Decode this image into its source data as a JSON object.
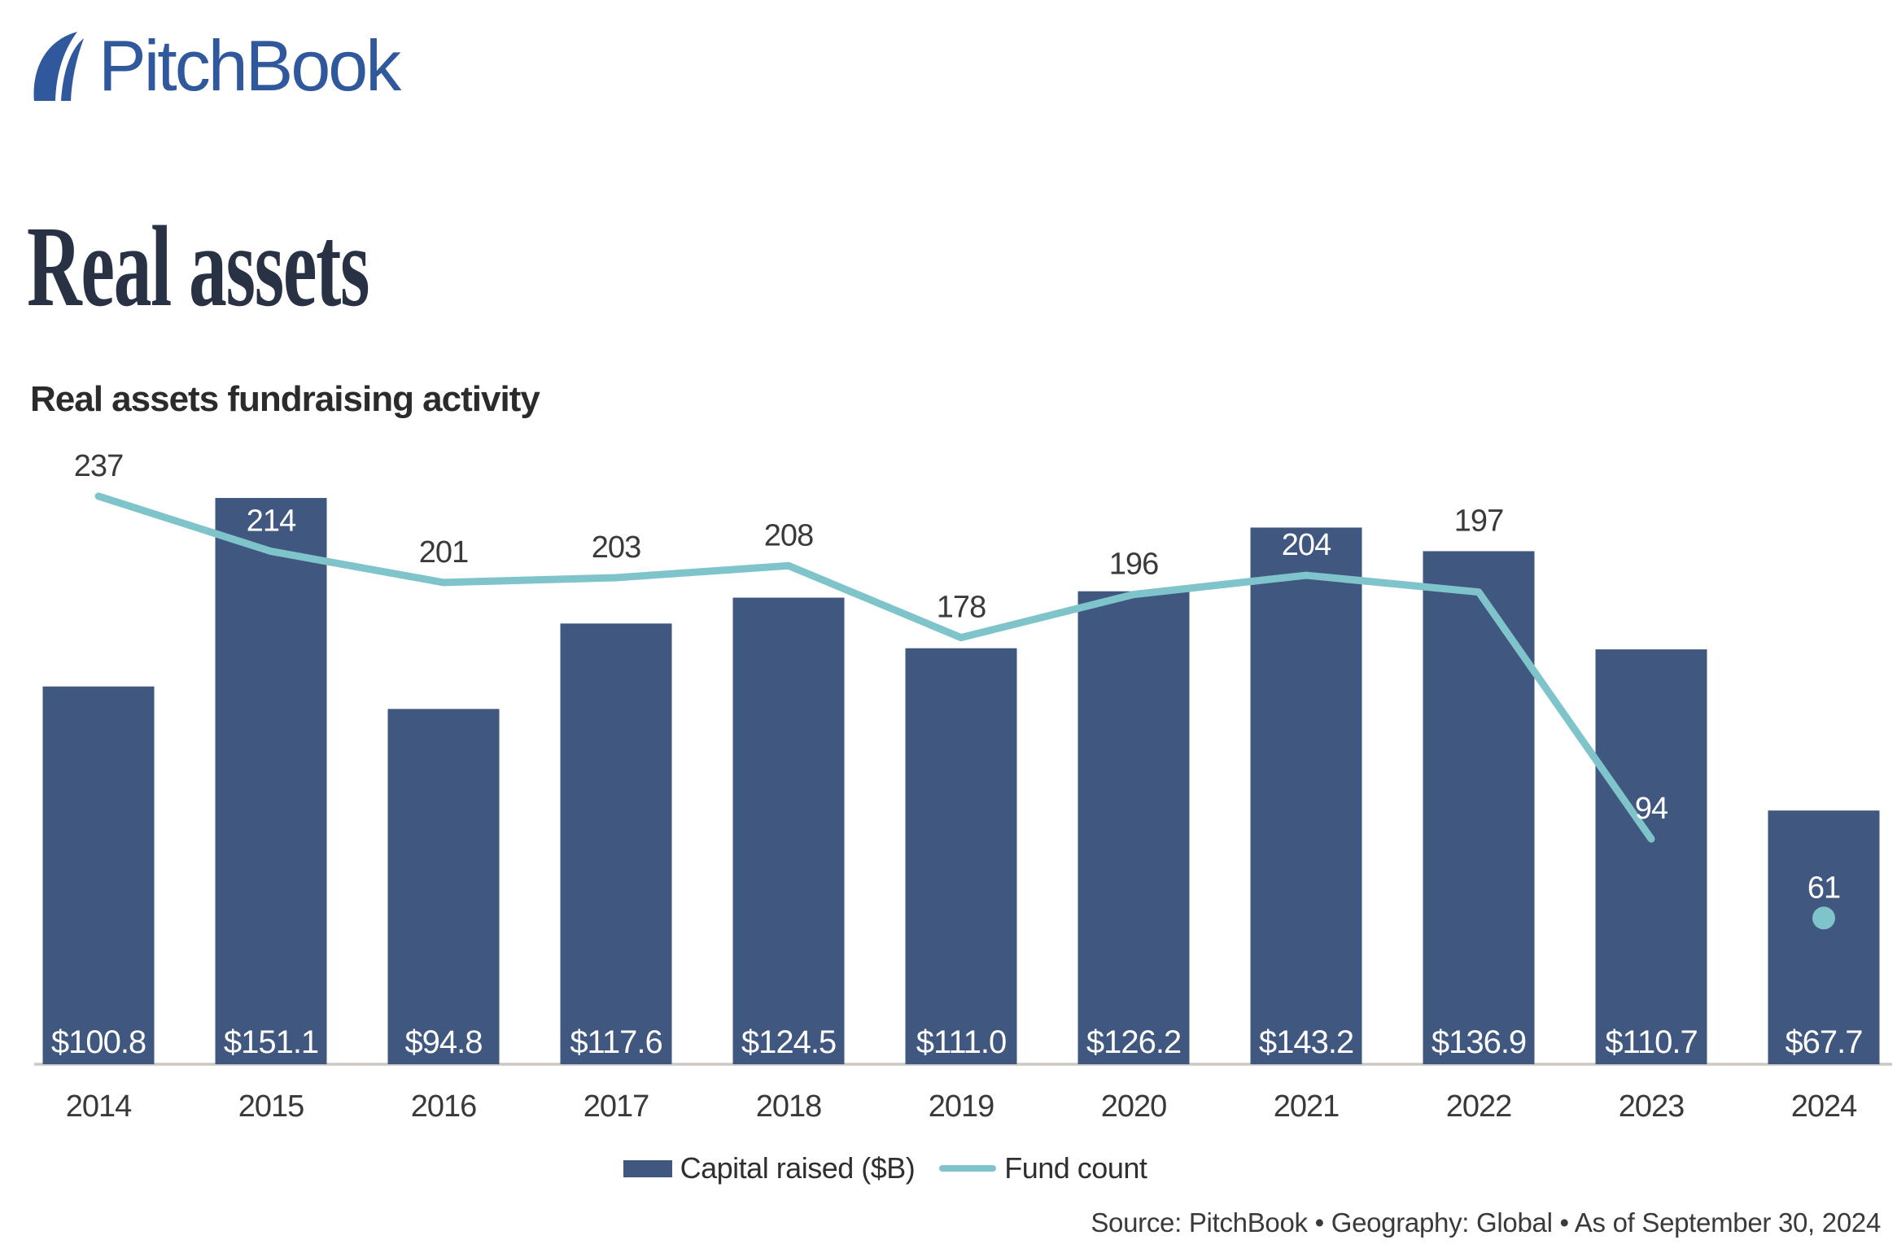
{
  "brand": {
    "logo_text": "PitchBook"
  },
  "header": {
    "title": "Real assets"
  },
  "chart": {
    "heading": "Real assets fundraising activity"
  },
  "legend": {
    "capital_label": "Capital raised ($B)",
    "fund_count_label": "Fund count"
  },
  "footer": {
    "source_line": "Source: PitchBook  •  Geography: Global  •  As of September 30, 2024"
  },
  "colors": {
    "logo_blue": "#30589c",
    "title_navy": "#293145",
    "bar_navy": "#40587f",
    "line_teal": "#7fc4ca",
    "baseline_grey": "#ccc8c4",
    "label_dark": "#3a3a3a",
    "label_white": "#ffffff"
  },
  "chart_data": {
    "type": "bar+line",
    "title": "Real assets fundraising activity",
    "categories": [
      "2014",
      "2015",
      "2016",
      "2017",
      "2018",
      "2019",
      "2020",
      "2021",
      "2022",
      "2023",
      "2024"
    ],
    "series": [
      {
        "name": "Capital raised ($B)",
        "type": "bar",
        "color": "#40587f",
        "values": [
          100.8,
          151.1,
          94.8,
          117.6,
          124.5,
          111.0,
          126.2,
          143.2,
          136.9,
          110.7,
          67.7
        ],
        "labels": [
          "$100.8",
          "$151.1",
          "$94.8",
          "$117.6",
          "$124.5",
          "$111.0",
          "$126.2",
          "$143.2",
          "$136.9",
          "$110.7",
          "$67.7"
        ],
        "axis_max": 165
      },
      {
        "name": "Fund count",
        "type": "line",
        "color": "#7fc4ca",
        "values": [
          237,
          214,
          201,
          203,
          208,
          178,
          196,
          204,
          197,
          94,
          61
        ],
        "axis_max": 258,
        "isolated_last_point": true
      }
    ],
    "grid": false,
    "y_axis_visible": false,
    "legend_position": "bottom-center",
    "baseline_color": "#ccc8c4"
  }
}
